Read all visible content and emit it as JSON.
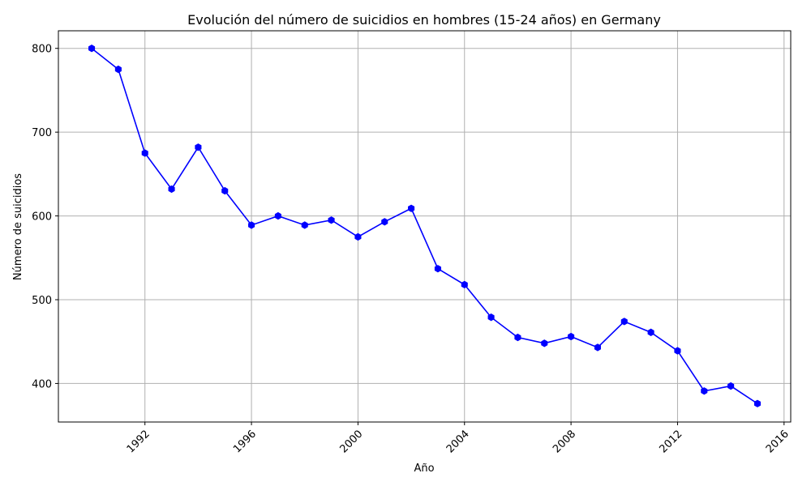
{
  "chart_data": {
    "type": "line",
    "title": "Evolución del número de suicidios en hombres (15-24 años) en Germany",
    "xlabel": "Año",
    "ylabel": "Número de suicidios",
    "x_ticks": [
      1992,
      1996,
      2000,
      2004,
      2008,
      2012,
      2016
    ],
    "y_ticks": [
      400,
      500,
      600,
      700,
      800
    ],
    "xlim": [
      1988.75,
      2016.25
    ],
    "ylim": [
      354,
      821
    ],
    "grid": true,
    "line_color": "#0000ff",
    "marker": "hexagon",
    "series": [
      {
        "x": [
          1990,
          1991,
          1992,
          1993,
          1994,
          1995,
          1996,
          1997,
          1998,
          1999,
          2000,
          2001,
          2002,
          2003,
          2004,
          2005,
          2006,
          2007,
          2008,
          2009,
          2010,
          2011,
          2012,
          2013,
          2014,
          2015
        ],
        "values": [
          800,
          775,
          675,
          632,
          682,
          630,
          589,
          600,
          589,
          595,
          575,
          593,
          609,
          537,
          518,
          479,
          455,
          448,
          456,
          443,
          474,
          461,
          439,
          391,
          397,
          376
        ]
      }
    ]
  }
}
